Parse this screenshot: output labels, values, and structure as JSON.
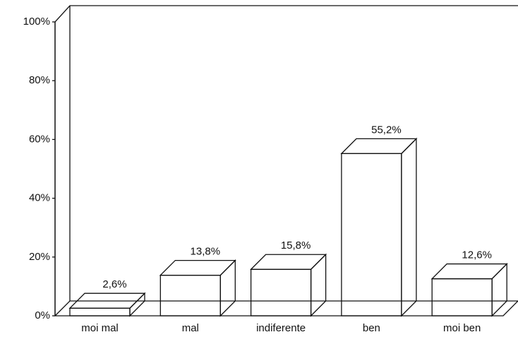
{
  "chart_data": {
    "type": "bar3d",
    "categories": [
      "moi mal",
      "mal",
      "indiferente",
      "ben",
      "moi ben"
    ],
    "values": [
      2.6,
      13.8,
      15.8,
      55.2,
      12.6
    ],
    "value_labels": [
      "2,6%",
      "13,8%",
      "15,8%",
      "55,2%",
      "12,6%"
    ],
    "color": "#ffffff",
    "ylim": [
      0,
      100
    ],
    "yticks": [
      {
        "value": 0,
        "label": "0%"
      },
      {
        "value": 20,
        "label": "20%"
      },
      {
        "value": 40,
        "label": "40%"
      },
      {
        "value": 60,
        "label": "60%"
      },
      {
        "value": 80,
        "label": "80%"
      },
      {
        "value": 100,
        "label": "100%"
      }
    ],
    "grid": false
  }
}
